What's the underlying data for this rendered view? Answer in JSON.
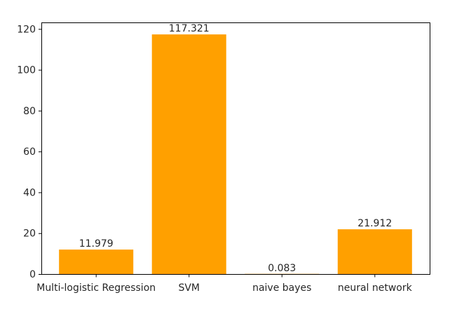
{
  "chart_data": {
    "type": "bar",
    "title": "",
    "xlabel": "",
    "ylabel": "",
    "categories": [
      "Multi-logistic Regression",
      "SVM",
      "naive bayes",
      "neural network"
    ],
    "values": [
      11.979,
      117.321,
      0.083,
      21.912
    ],
    "data_labels": [
      "11.979",
      "117.321",
      "0.083",
      "21.912"
    ],
    "ylim": [
      0,
      123.19
    ],
    "yticks": [
      0,
      20,
      40,
      60,
      80,
      100,
      120
    ],
    "ytick_labels": [
      "0",
      "20",
      "40",
      "60",
      "80",
      "100",
      "120"
    ],
    "bar_color": "#ffa000",
    "grid": false,
    "legend": "none"
  }
}
